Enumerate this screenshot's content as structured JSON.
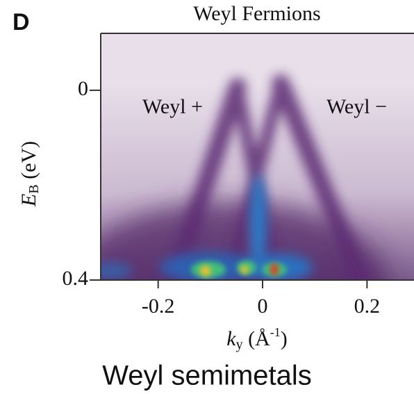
{
  "chart_data": {
    "type": "heatmap",
    "panel_label": "D",
    "title": "Weyl Fermions",
    "annotations": [
      "Weyl +",
      "Weyl −"
    ],
    "y_label": {
      "main": "E",
      "sub": "B",
      "rest": " (eV)"
    },
    "x_label": {
      "main": "k",
      "sub": "y",
      "rest": " (Å",
      "sup": "-1",
      "end": ")"
    },
    "caption": "Weyl semimetals",
    "xlim": [
      -0.31,
      0.29
    ],
    "xticks": [
      -0.2,
      0,
      0.2
    ],
    "ylim": [
      0.4,
      -0.12
    ],
    "yticks": [
      0,
      0.4
    ]
  }
}
